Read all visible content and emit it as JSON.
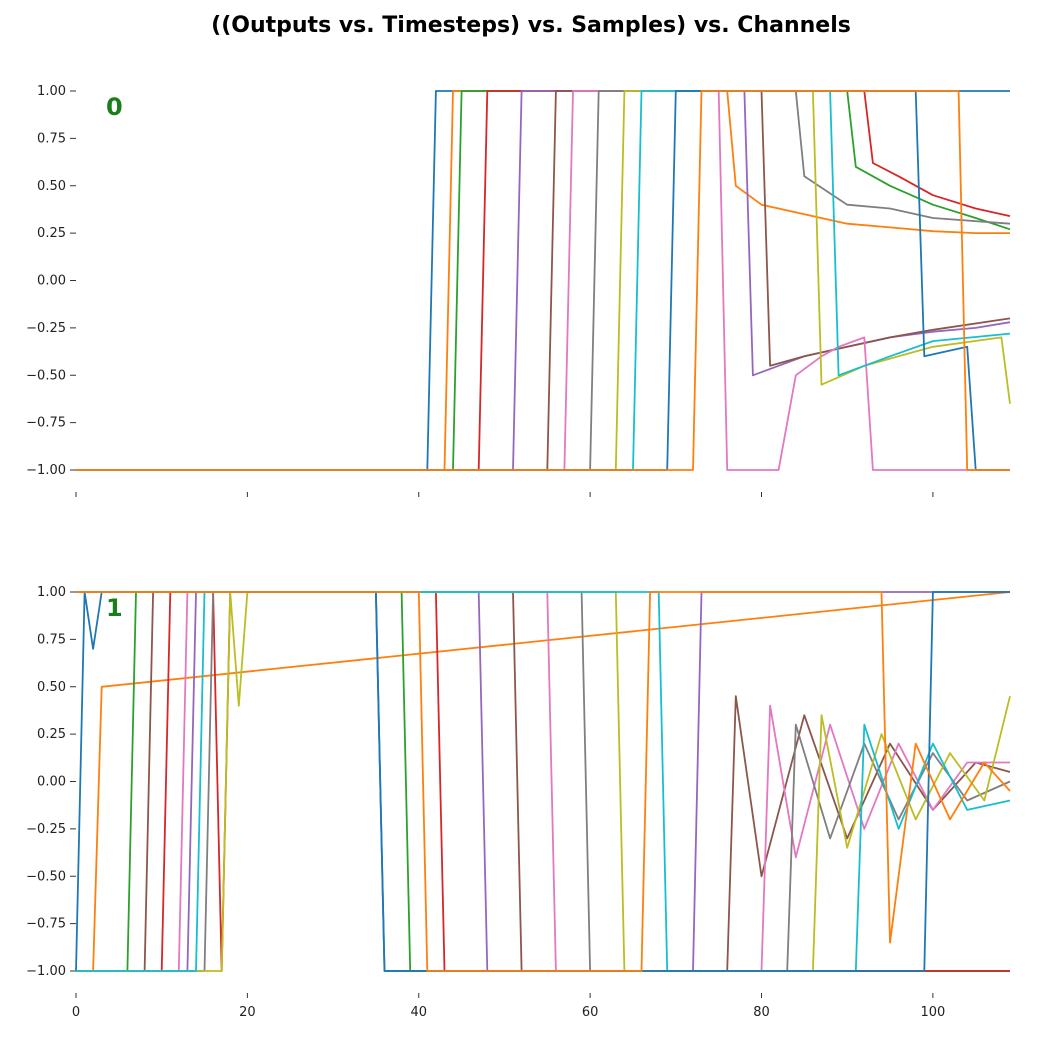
{
  "chart_data": {
    "type": "line",
    "title": "((Outputs vs. Timesteps) vs. Samples) vs. Channels",
    "xlabel": "",
    "ylabel": "",
    "xlim": [
      0,
      109
    ],
    "ylim": [
      -1.0,
      1.0
    ],
    "x_ticks": [
      0,
      20,
      40,
      60,
      80,
      100
    ],
    "y_ticks": [
      1.0,
      0.75,
      0.5,
      0.25,
      0.0,
      -0.25,
      -0.5,
      -0.75,
      -1.0
    ],
    "y_tick_labels": [
      "1.00",
      "0.75",
      "0.50",
      "0.25",
      "0.00",
      "−0.25",
      "−0.50",
      "−0.75",
      "−1.00"
    ],
    "grid": false,
    "legend": "none",
    "colors": [
      "#1f77b4",
      "#ff7f0e",
      "#2ca02c",
      "#d62728",
      "#9467bd",
      "#8c564b",
      "#e377c2",
      "#7f7f7f",
      "#bcbd22",
      "#17becf"
    ],
    "panels": [
      {
        "label": "0",
        "series": [
          {
            "x": [
              0,
              41,
              42,
              108,
              109
            ],
            "values": [
              -1,
              -1,
              1,
              1,
              1
            ]
          },
          {
            "x": [
              0,
              43,
              44,
              76,
              77,
              80,
              85,
              90,
              95,
              100,
              105,
              109
            ],
            "values": [
              -1,
              -1,
              1,
              1,
              0.5,
              0.4,
              0.35,
              0.3,
              0.28,
              0.26,
              0.25,
              0.25
            ]
          },
          {
            "x": [
              0,
              44,
              45,
              90,
              91,
              95,
              100,
              105,
              109
            ],
            "values": [
              -1,
              -1,
              1,
              1,
              0.6,
              0.5,
              0.4,
              0.33,
              0.27
            ]
          },
          {
            "x": [
              0,
              47,
              48,
              92,
              93,
              96,
              100,
              105,
              109
            ],
            "values": [
              -1,
              -1,
              1,
              1,
              0.62,
              0.55,
              0.45,
              0.38,
              0.34
            ]
          },
          {
            "x": [
              0,
              51,
              52,
              78,
              79,
              85,
              90,
              95,
              100,
              105,
              109
            ],
            "values": [
              -1,
              -1,
              1,
              1,
              -0.5,
              -0.4,
              -0.35,
              -0.3,
              -0.27,
              -0.25,
              -0.22
            ]
          },
          {
            "x": [
              0,
              55,
              56,
              80,
              81,
              85,
              90,
              95,
              100,
              109
            ],
            "values": [
              -1,
              -1,
              1,
              1,
              -0.45,
              -0.4,
              -0.35,
              -0.3,
              -0.26,
              -0.2
            ]
          },
          {
            "x": [
              0,
              57,
              58,
              75,
              76,
              82,
              84,
              87,
              89,
              92,
              93,
              109
            ],
            "values": [
              -1,
              -1,
              1,
              1,
              -1,
              -1,
              -0.5,
              -0.4,
              -0.35,
              -0.3,
              -1,
              -1
            ]
          },
          {
            "x": [
              0,
              60,
              61,
              84,
              85,
              90,
              95,
              100,
              109
            ],
            "values": [
              -1,
              -1,
              1,
              1,
              0.55,
              0.4,
              0.38,
              0.33,
              0.3
            ]
          },
          {
            "x": [
              0,
              63,
              64,
              86,
              87,
              92,
              96,
              100,
              108,
              109
            ],
            "values": [
              -1,
              -1,
              1,
              1,
              -0.55,
              -0.45,
              -0.4,
              -0.35,
              -0.3,
              -0.65
            ]
          },
          {
            "x": [
              0,
              65,
              66,
              88,
              89,
              95,
              100,
              109
            ],
            "values": [
              -1,
              -1,
              1,
              1,
              -0.5,
              -0.4,
              -0.32,
              -0.28
            ]
          },
          {
            "x": [
              0,
              69,
              70,
              98,
              99,
              104,
              105,
              109
            ],
            "values": [
              -1,
              -1,
              1,
              1,
              -0.4,
              -0.35,
              -1,
              -1
            ]
          },
          {
            "x": [
              0,
              72,
              73,
              103,
              104,
              109
            ],
            "values": [
              -1,
              -1,
              1,
              1,
              -1,
              -1
            ]
          }
        ]
      },
      {
        "label": "1",
        "series": [
          {
            "x": [
              0,
              1,
              2,
              3,
              4,
              35,
              36,
              109
            ],
            "values": [
              -1,
              1,
              0.7,
              1,
              1,
              1,
              -1,
              -1
            ]
          },
          {
            "x": [
              0,
              2,
              3,
              109
            ],
            "values": [
              -1,
              -1,
              0.5,
              1
            ]
          },
          {
            "x": [
              0,
              6,
              7,
              38,
              39,
              109
            ],
            "values": [
              -1,
              -1,
              1,
              1,
              -1,
              -1
            ]
          },
          {
            "x": [
              0,
              10,
              11,
              16,
              17,
              18,
              19,
              42,
              43,
              109
            ],
            "values": [
              -1,
              -1,
              1,
              1,
              -1,
              1,
              1,
              1,
              -1,
              -1
            ]
          },
          {
            "x": [
              0,
              13,
              14,
              47,
              48,
              72,
              73,
              109
            ],
            "values": [
              -1,
              -1,
              1,
              1,
              -1,
              -1,
              1,
              1
            ]
          },
          {
            "x": [
              0,
              8,
              9,
              51,
              52,
              76,
              77,
              80,
              85,
              90,
              95,
              100,
              105,
              109
            ],
            "values": [
              -1,
              -1,
              1,
              1,
              -1,
              -1,
              0.45,
              -0.5,
              0.35,
              -0.3,
              0.2,
              -0.15,
              0.1,
              0.05
            ]
          },
          {
            "x": [
              0,
              12,
              13,
              55,
              56,
              80,
              81,
              84,
              88,
              92,
              96,
              100,
              104,
              109
            ],
            "values": [
              -1,
              -1,
              1,
              1,
              -1,
              -1,
              0.4,
              -0.4,
              0.3,
              -0.25,
              0.2,
              -0.15,
              0.1,
              0.1
            ]
          },
          {
            "x": [
              0,
              15,
              16,
              59,
              60,
              83,
              84,
              88,
              92,
              96,
              100,
              104,
              109
            ],
            "values": [
              -1,
              -1,
              1,
              1,
              -1,
              -1,
              0.3,
              -0.3,
              0.2,
              -0.2,
              0.15,
              -0.1,
              0.0
            ]
          },
          {
            "x": [
              0,
              17,
              18,
              19,
              20,
              63,
              64,
              86,
              87,
              90,
              94,
              98,
              102,
              106,
              109
            ],
            "values": [
              -1,
              -1,
              1,
              0.4,
              1,
              1,
              -1,
              -1,
              0.35,
              -0.35,
              0.25,
              -0.2,
              0.15,
              -0.1,
              0.45
            ]
          },
          {
            "x": [
              0,
              14,
              15,
              68,
              69,
              91,
              92,
              96,
              100,
              104,
              109
            ],
            "values": [
              -1,
              -1,
              1,
              1,
              -1,
              -1,
              0.3,
              -0.25,
              0.2,
              -0.15,
              -0.1
            ]
          },
          {
            "x": [
              0,
              35,
              36,
              99,
              100,
              109
            ],
            "values": [
              1,
              1,
              -1,
              -1,
              1,
              1
            ]
          },
          {
            "x": [
              0,
              40,
              41,
              66,
              67,
              94,
              95,
              98,
              102,
              106,
              109
            ],
            "values": [
              1,
              1,
              -1,
              -1,
              1,
              1,
              -0.85,
              0.2,
              -0.2,
              0.1,
              -0.05
            ]
          }
        ]
      }
    ]
  }
}
